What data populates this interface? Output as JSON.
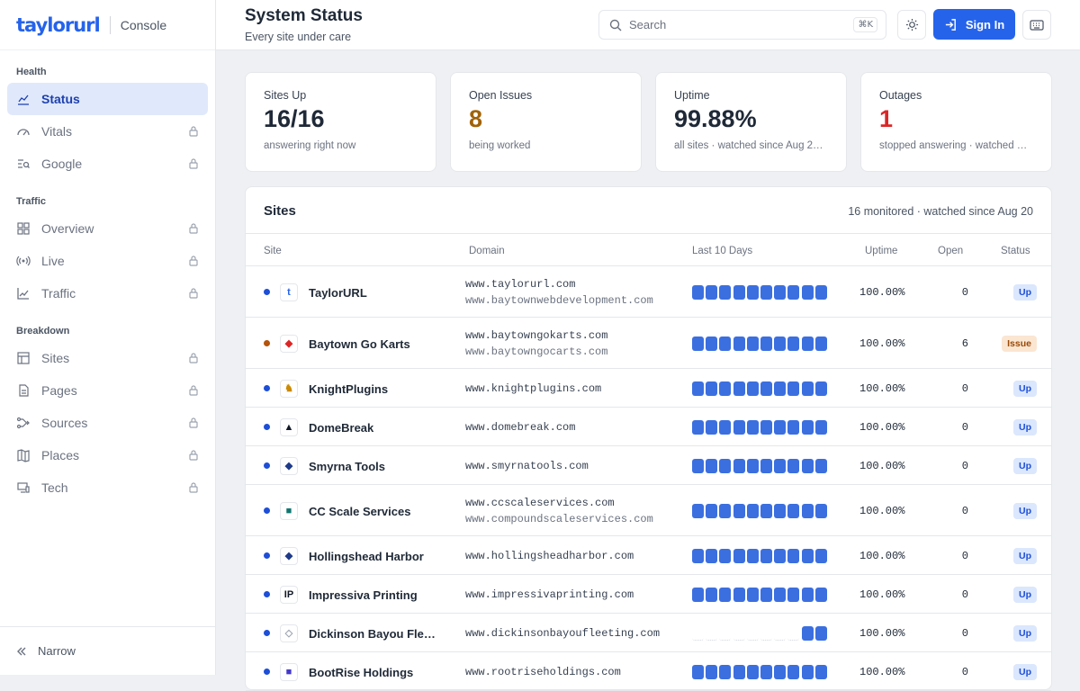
{
  "brand": {
    "logo": "taylorurl",
    "section": "Console"
  },
  "sidebar": {
    "groups": [
      {
        "title": "Health",
        "items": [
          {
            "label": "Status",
            "icon": "chart-line-icon",
            "active": true,
            "locked": false
          },
          {
            "label": "Vitals",
            "icon": "gauge-icon",
            "locked": true
          },
          {
            "label": "Google",
            "icon": "search-list-icon",
            "locked": true
          }
        ]
      },
      {
        "title": "Traffic",
        "items": [
          {
            "label": "Overview",
            "icon": "grid-icon",
            "locked": true
          },
          {
            "label": "Live",
            "icon": "broadcast-icon",
            "locked": true
          },
          {
            "label": "Traffic",
            "icon": "trend-icon",
            "locked": true
          }
        ]
      },
      {
        "title": "Breakdown",
        "items": [
          {
            "label": "Sites",
            "icon": "layout-icon",
            "locked": true
          },
          {
            "label": "Pages",
            "icon": "page-icon",
            "locked": true
          },
          {
            "label": "Sources",
            "icon": "route-icon",
            "locked": true
          },
          {
            "label": "Places",
            "icon": "map-icon",
            "locked": true
          },
          {
            "label": "Tech",
            "icon": "devices-icon",
            "locked": true
          }
        ]
      }
    ],
    "collapse_label": "Narrow"
  },
  "header": {
    "title": "System Status",
    "subtitle": "Every site under care",
    "search_placeholder": "Search",
    "search_shortcut": "⌘K",
    "signin_label": "Sign In"
  },
  "stats": [
    {
      "label": "Sites Up",
      "value": "16/16",
      "sub": "answering right now",
      "color": "#1f2937"
    },
    {
      "label": "Open Issues",
      "value": "8",
      "sub": "being worked",
      "color": "#a16207"
    },
    {
      "label": "Uptime",
      "value": "99.88%",
      "sub": "all sites · watched since Aug 2…",
      "color": "#1f2937"
    },
    {
      "label": "Outages",
      "value": "1",
      "sub": "stopped answering · watched …",
      "color": "#dc2626"
    }
  ],
  "sites_panel": {
    "title": "Sites",
    "meta": "16 monitored · watched since Aug 20",
    "columns": {
      "site": "Site",
      "domain": "Domain",
      "last10": "Last 10 Days",
      "uptime": "Uptime",
      "open": "Open",
      "status": "Status"
    },
    "rows": [
      {
        "name": "TaylorURL",
        "favicon": "t",
        "fav_color": "#2563eb",
        "domains": [
          "www.taylorurl.com",
          "www.baytownwebdevelopment.com"
        ],
        "days_up": 10,
        "uptime": "100.00%",
        "open": "0",
        "status": "Up",
        "dot": "#1d4ed8"
      },
      {
        "name": "Baytown Go Karts",
        "favicon": "◆",
        "fav_color": "#dc2626",
        "domains": [
          "www.baytowngokarts.com",
          "www.baytowngocarts.com"
        ],
        "days_up": 10,
        "uptime": "100.00%",
        "open": "6",
        "status": "Issue",
        "dot": "#b45309"
      },
      {
        "name": "KnightPlugins",
        "favicon": "♞",
        "fav_color": "#ca8a04",
        "domains": [
          "www.knightplugins.com"
        ],
        "days_up": 10,
        "uptime": "100.00%",
        "open": "0",
        "status": "Up",
        "dot": "#1d4ed8"
      },
      {
        "name": "DomeBreak",
        "favicon": "▲",
        "fav_color": "#111827",
        "domains": [
          "www.domebreak.com"
        ],
        "days_up": 10,
        "uptime": "100.00%",
        "open": "0",
        "status": "Up",
        "dot": "#1d4ed8"
      },
      {
        "name": "Smyrna Tools",
        "favicon": "◆",
        "fav_color": "#1e3a8a",
        "domains": [
          "www.smyrnatools.com"
        ],
        "days_up": 10,
        "uptime": "100.00%",
        "open": "0",
        "status": "Up",
        "dot": "#1d4ed8"
      },
      {
        "name": "CC Scale Services",
        "favicon": "■",
        "fav_color": "#0f766e",
        "domains": [
          "www.ccscaleservices.com",
          "www.compoundscaleservices.com"
        ],
        "days_up": 10,
        "uptime": "100.00%",
        "open": "0",
        "status": "Up",
        "dot": "#1d4ed8"
      },
      {
        "name": "Hollingshead Harbor",
        "favicon": "◆",
        "fav_color": "#1e3a8a",
        "domains": [
          "www.hollingsheadharbor.com"
        ],
        "days_up": 10,
        "uptime": "100.00%",
        "open": "0",
        "status": "Up",
        "dot": "#1d4ed8"
      },
      {
        "name": "Impressiva Printing",
        "favicon": "IP",
        "fav_color": "#111827",
        "domains": [
          "www.impressivaprinting.com"
        ],
        "days_up": 10,
        "uptime": "100.00%",
        "open": "0",
        "status": "Up",
        "dot": "#1d4ed8"
      },
      {
        "name": "Dickinson Bayou Fle…",
        "favicon": "◇",
        "fav_color": "#9ca3af",
        "domains": [
          "www.dickinsonbayoufleeting.com"
        ],
        "days_up": 2,
        "uptime": "100.00%",
        "open": "0",
        "status": "Up",
        "dot": "#1d4ed8"
      },
      {
        "name": "BootRise Holdings",
        "favicon": "■",
        "fav_color": "#4338ca",
        "domains": [
          "www.rootriseholdings.com"
        ],
        "days_up": 10,
        "uptime": "100.00%",
        "open": "0",
        "status": "Up",
        "dot": "#1d4ed8"
      }
    ]
  }
}
